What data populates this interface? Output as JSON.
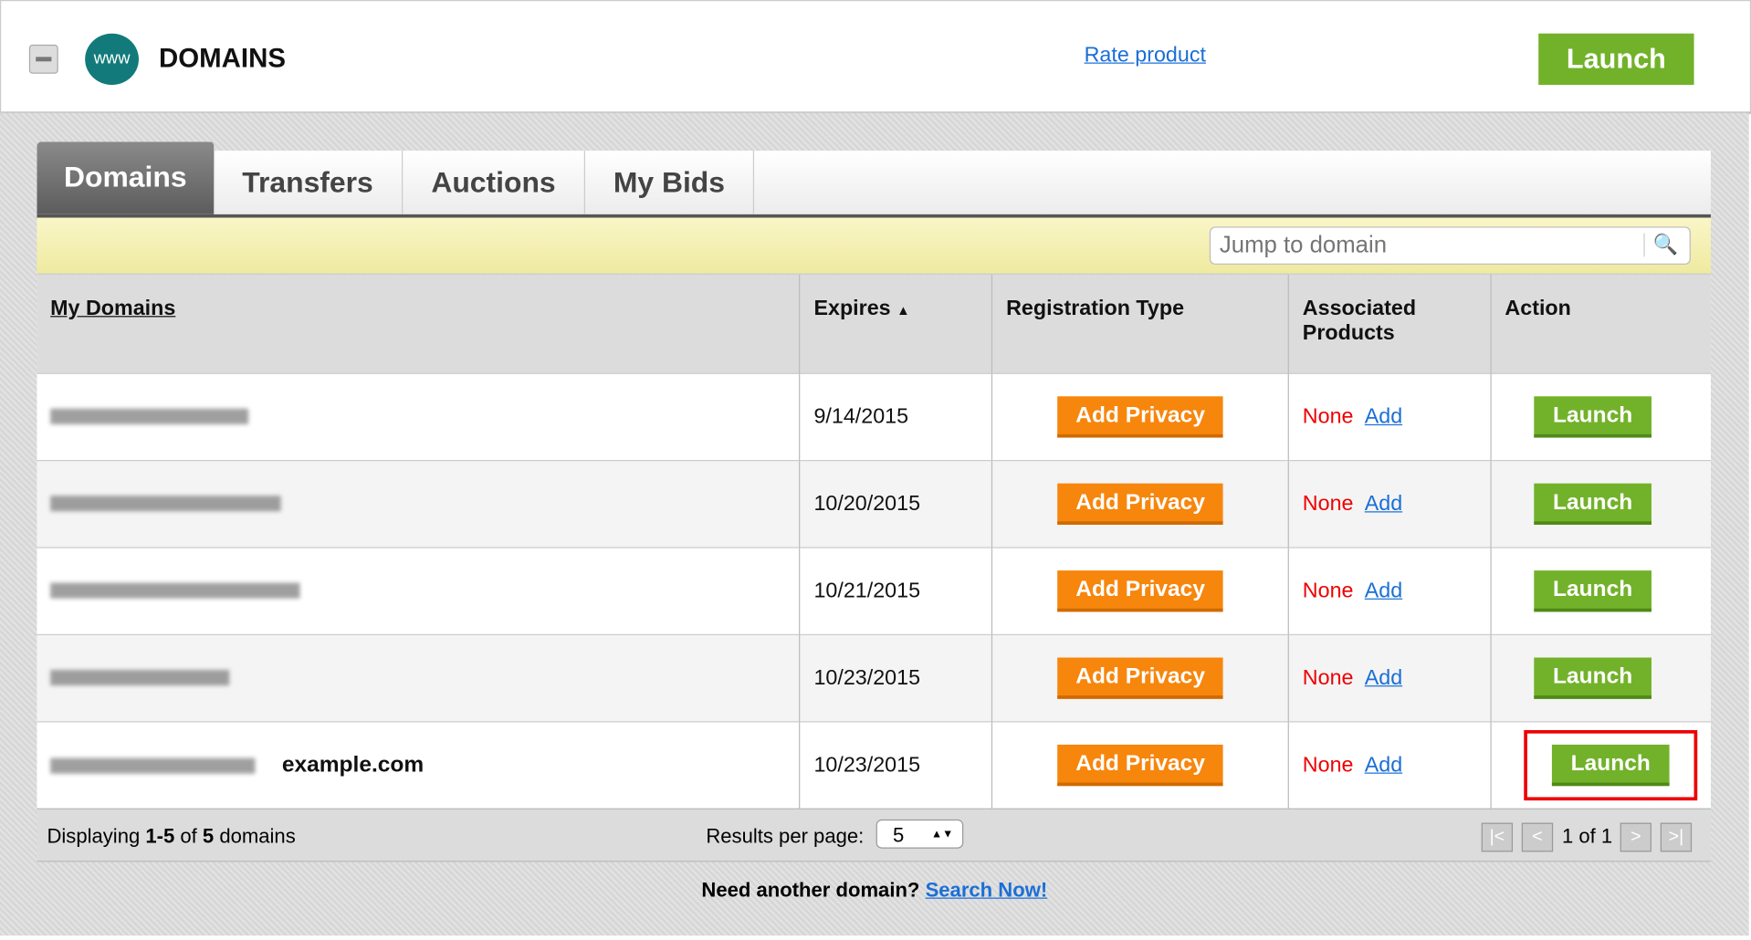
{
  "header": {
    "title": "DOMAINS",
    "globe_text": "www",
    "rate_link": "Rate product",
    "launch": "Launch"
  },
  "tabs": [
    {
      "label": "Domains",
      "active": true
    },
    {
      "label": "Transfers"
    },
    {
      "label": "Auctions"
    },
    {
      "label": "My Bids"
    }
  ],
  "search": {
    "placeholder": "Jump to domain"
  },
  "columns": [
    "My Domains",
    "Expires",
    "Registration Type",
    "Associated Products",
    "Action"
  ],
  "sort_indicator": "▲",
  "rows": [
    {
      "expires": "9/14/2015",
      "privacy": "Add Privacy",
      "products": "None",
      "add": "Add",
      "action": "Launch"
    },
    {
      "expires": "10/20/2015",
      "privacy": "Add Privacy",
      "products": "None",
      "add": "Add",
      "action": "Launch"
    },
    {
      "expires": "10/21/2015",
      "privacy": "Add Privacy",
      "products": "None",
      "add": "Add",
      "action": "Launch"
    },
    {
      "expires": "10/23/2015",
      "privacy": "Add Privacy",
      "products": "None",
      "add": "Add",
      "action": "Launch"
    },
    {
      "expires": "10/23/2015",
      "privacy": "Add Privacy",
      "products": "None",
      "add": "Add",
      "action": "Launch",
      "annotation": "example.com"
    }
  ],
  "footer": {
    "displaying_prefix": "Displaying ",
    "range": "1-5",
    "of": " of ",
    "total": "5",
    "suffix": " domains",
    "results_label": "Results per page:",
    "per_page": "5",
    "page_info": "1 of 1"
  },
  "bottom": {
    "text": "Need another domain?",
    "link": "Search Now!"
  },
  "colors": {
    "launch": "#72b22a",
    "privacy": "#f7860d",
    "none": "#ee0000",
    "highlight": "#ee0000"
  }
}
